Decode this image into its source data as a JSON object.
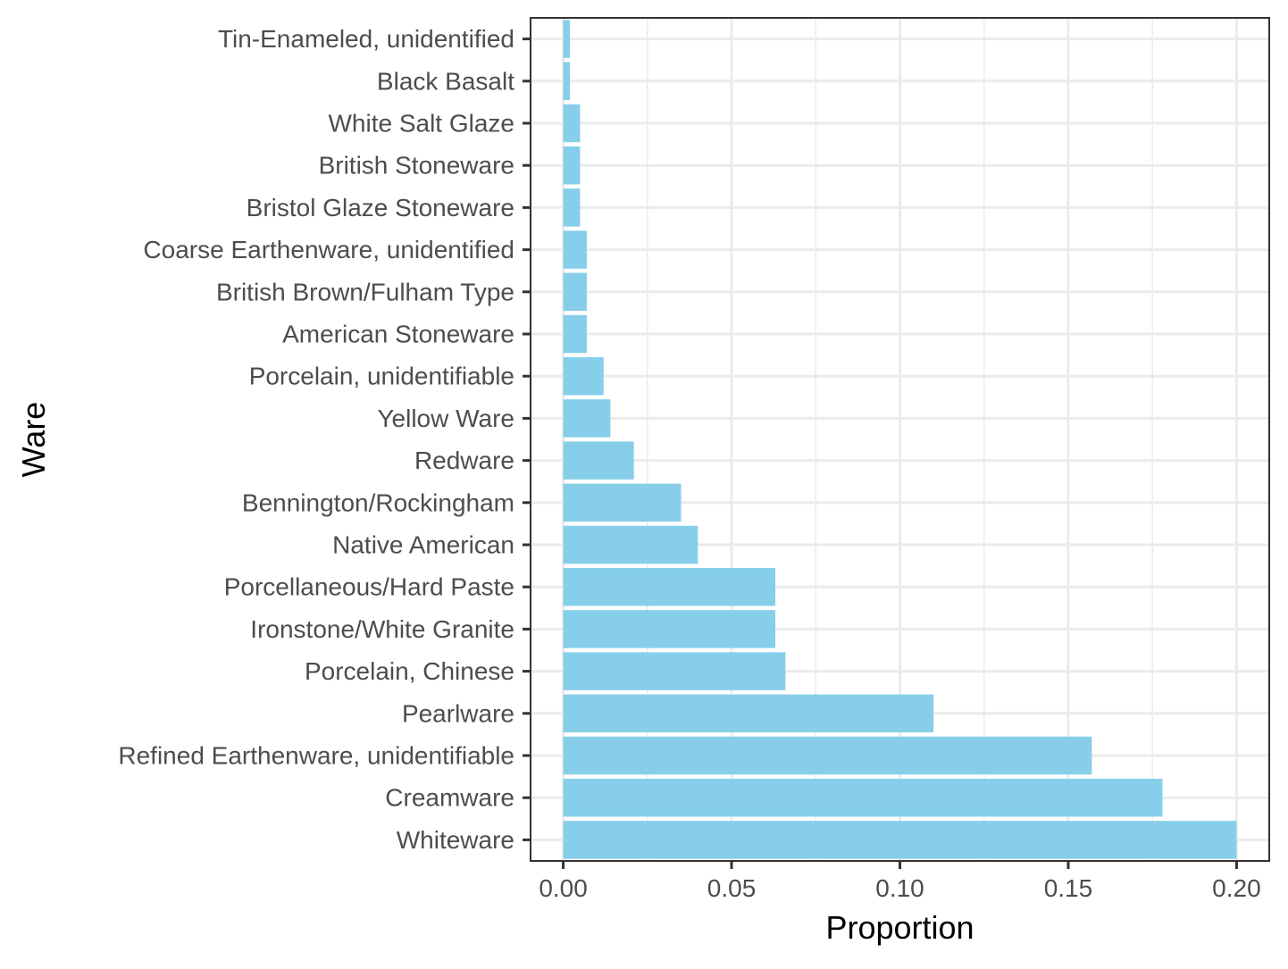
{
  "chart_data": {
    "type": "bar",
    "orientation": "horizontal",
    "title": "",
    "xlabel": "Proportion",
    "ylabel": "Ware",
    "categories": [
      "Tin-Enameled, unidentified",
      "Black Basalt",
      "White Salt Glaze",
      "British Stoneware",
      "Bristol Glaze Stoneware",
      "Coarse Earthenware, unidentified",
      "British Brown/Fulham Type",
      "American Stoneware",
      "Porcelain, unidentifiable",
      "Yellow Ware",
      "Redware",
      "Bennington/Rockingham",
      "Native American",
      "Porcellaneous/Hard Paste",
      "Ironstone/White Granite",
      "Porcelain, Chinese",
      "Pearlware",
      "Refined Earthenware, unidentifiable",
      "Creamware",
      "Whiteware"
    ],
    "values": [
      0.002,
      0.002,
      0.005,
      0.005,
      0.005,
      0.007,
      0.007,
      0.007,
      0.012,
      0.014,
      0.021,
      0.035,
      0.04,
      0.063,
      0.063,
      0.066,
      0.11,
      0.157,
      0.178,
      0.2
    ],
    "xlim": [
      -0.0097,
      0.2097
    ],
    "xticks": [
      0.0,
      0.05,
      0.1,
      0.15,
      0.2
    ],
    "xtick_labels": [
      "0.00",
      "0.05",
      "0.10",
      "0.15",
      "0.20"
    ],
    "grid": true,
    "legend": "none",
    "bar_color": "#87CEEB",
    "panel_border_color": "#333333",
    "grid_color": "#ebebeb"
  }
}
